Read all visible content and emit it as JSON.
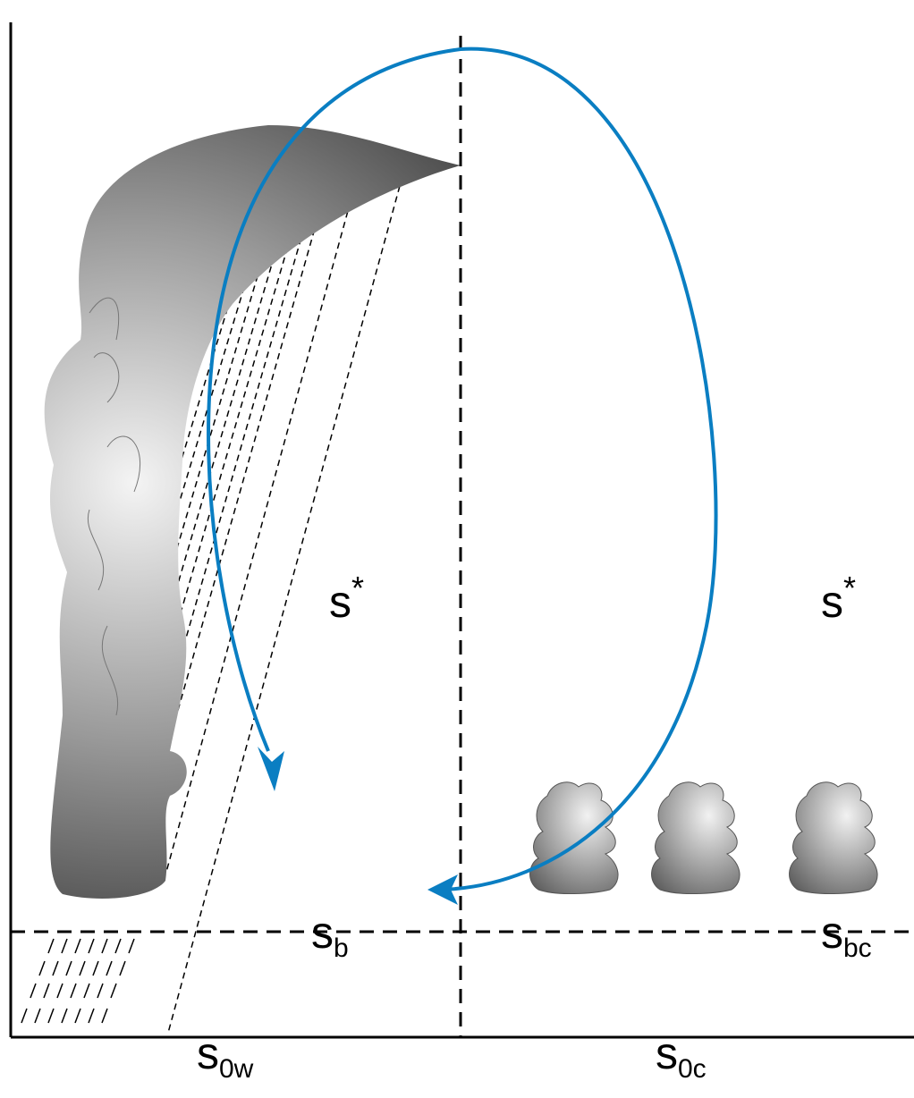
{
  "labels": [
    {
      "main": "s",
      "sup": "*"
    },
    {
      "main": "s",
      "sup": "*"
    },
    {
      "main": "s",
      "sub": "b"
    },
    {
      "main": "s",
      "sub": "bc"
    },
    {
      "main": "s",
      "sub": "0w"
    },
    {
      "main": "s",
      "sub": "0c"
    }
  ]
}
